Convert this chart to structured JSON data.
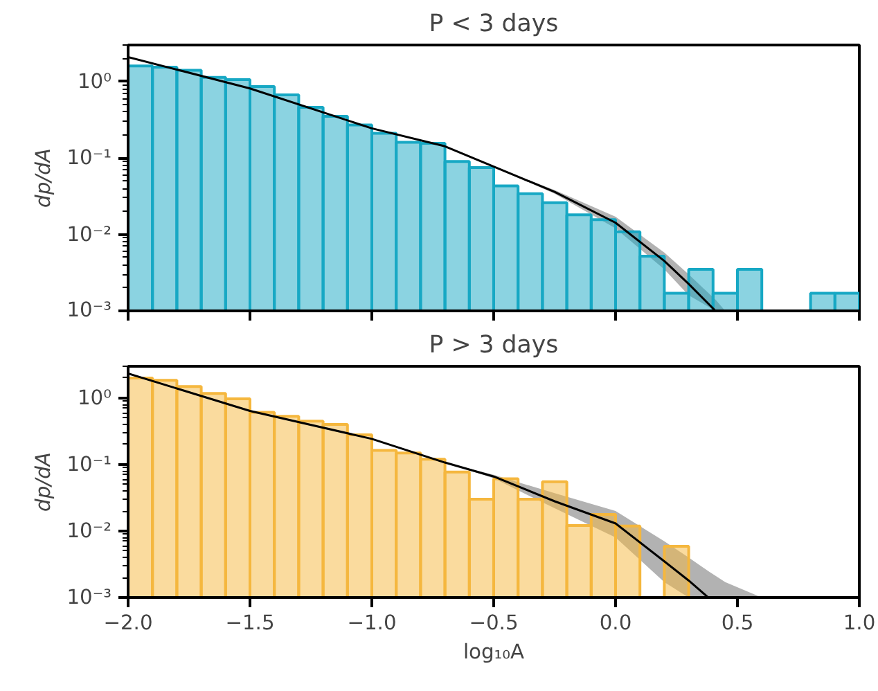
{
  "chart_data": [
    {
      "type": "histogram",
      "title": "P < 3 days",
      "ylabel": "dp/dA",
      "log": "y",
      "grid": false,
      "tick_labels": "y",
      "bins": [
        -2.0,
        -1.9,
        -1.8,
        -1.7,
        -1.6,
        -1.5,
        -1.4,
        -1.3,
        -1.2,
        -1.1,
        -1.0,
        -0.9,
        -0.8,
        -0.7,
        -0.6,
        -0.5,
        -0.4,
        -0.3,
        -0.2,
        -0.1,
        0.0,
        0.1,
        0.2,
        0.3,
        0.4,
        0.5,
        0.6,
        0.7,
        0.8,
        0.9,
        1.0
      ],
      "xlim": [
        -2.0,
        1.0
      ],
      "xticks": [
        {
          "value": -2.0,
          "label": null
        },
        {
          "value": -1.5,
          "label": null
        },
        {
          "value": -1.0,
          "label": null
        },
        {
          "value": -0.5,
          "label": null
        },
        {
          "value": 0.0,
          "label": null
        },
        {
          "value": 0.5,
          "label": null
        },
        {
          "value": 1.0,
          "label": null
        }
      ],
      "ylim": [
        0.001,
        3
      ],
      "yticks": [
        {
          "value": 0.001,
          "label": "10⁻³"
        },
        {
          "value": 0.01,
          "label": "10⁻²"
        },
        {
          "value": 0.1,
          "label": "10⁻¹"
        },
        {
          "value": 1,
          "label": "10⁰"
        }
      ],
      "series": [
        {
          "type": "histogram",
          "color": "#17a8c4",
          "values": [
            1.6,
            1.54,
            1.4,
            1.13,
            1.06,
            0.86,
            0.67,
            0.46,
            0.35,
            0.27,
            0.21,
            0.16,
            0.155,
            0.09,
            0.075,
            0.043,
            0.034,
            0.026,
            0.018,
            0.0156,
            0.0108,
            0.0052,
            0.0017,
            0.0035,
            0.0017,
            0.0035,
            null,
            null,
            0.0017,
            0.0017
          ]
        },
        {
          "type": "line",
          "color": "#000000",
          "x": [
            -2.0,
            -1.5,
            -1.0,
            -0.7,
            -0.5,
            -0.25,
            0.0,
            0.2,
            0.3,
            0.41,
            0.45
          ],
          "values": [
            2.09,
            0.81,
            0.244,
            0.142,
            0.077,
            0.036,
            0.0142,
            0.0045,
            0.00225,
            0.001,
            null
          ],
          "lower": [
            2.09,
            0.81,
            0.244,
            0.142,
            0.077,
            0.034,
            0.012,
            0.0035,
            0.0016,
            0.001,
            0.001
          ],
          "upper": [
            2.09,
            0.81,
            0.244,
            0.142,
            0.077,
            0.038,
            0.017,
            0.0058,
            0.003,
            0.0014,
            0.001
          ]
        }
      ]
    },
    {
      "type": "histogram",
      "title": "P > 3 days",
      "ylabel": "dp/dA",
      "xlabel": "log₁₀A",
      "log": "y",
      "grid": false,
      "bins": [
        -2.0,
        -1.9,
        -1.8,
        -1.7,
        -1.6,
        -1.5,
        -1.4,
        -1.3,
        -1.2,
        -1.1,
        -1.0,
        -0.9,
        -0.8,
        -0.7,
        -0.6,
        -0.5,
        -0.4,
        -0.3,
        -0.2,
        -0.1,
        0.0,
        0.1,
        0.2,
        0.3,
        0.4,
        0.5,
        0.6,
        0.7,
        0.8,
        0.9,
        1.0
      ],
      "xlim": [
        -2.0,
        1.0
      ],
      "xticks": [
        {
          "value": -2.0,
          "label": "−2.0"
        },
        {
          "value": -1.5,
          "label": "−1.5"
        },
        {
          "value": -1.0,
          "label": "−1.0"
        },
        {
          "value": -0.5,
          "label": "−0.5"
        },
        {
          "value": 0.0,
          "label": "0.0"
        },
        {
          "value": 0.5,
          "label": "0.5"
        },
        {
          "value": 1.0,
          "label": "1.0"
        }
      ],
      "ylim": [
        0.001,
        3
      ],
      "yticks": [
        {
          "value": 0.001,
          "label": "10⁻³"
        },
        {
          "value": 0.01,
          "label": "10⁻²"
        },
        {
          "value": 0.1,
          "label": "10⁻¹"
        },
        {
          "value": 1,
          "label": "10⁰"
        }
      ],
      "series": [
        {
          "type": "histogram",
          "color": "#f5b73e",
          "values": [
            2.0,
            1.85,
            1.49,
            1.17,
            0.97,
            0.61,
            0.53,
            0.45,
            0.4,
            0.28,
            0.163,
            0.149,
            0.12,
            0.077,
            0.03,
            0.061,
            0.03,
            0.055,
            0.0121,
            0.0178,
            0.0119,
            null,
            0.0059,
            null,
            null,
            null,
            null,
            null,
            null,
            null
          ]
        },
        {
          "type": "line",
          "color": "#000000",
          "x": [
            -2.0,
            -1.5,
            -1.0,
            -0.7,
            -0.5,
            -0.25,
            0.0,
            0.2,
            0.3,
            0.38,
            0.45,
            0.6
          ],
          "values": [
            2.33,
            0.64,
            0.243,
            0.107,
            0.066,
            0.028,
            0.013,
            0.0035,
            0.0018,
            0.001,
            null,
            null
          ],
          "lower": [
            2.33,
            0.64,
            0.243,
            0.107,
            0.062,
            0.022,
            0.008,
            0.0017,
            0.001,
            0.001,
            0.001,
            0.001
          ],
          "upper": [
            2.33,
            0.64,
            0.243,
            0.107,
            0.07,
            0.037,
            0.02,
            0.007,
            0.004,
            0.0025,
            0.0017,
            0.001
          ]
        }
      ]
    }
  ]
}
